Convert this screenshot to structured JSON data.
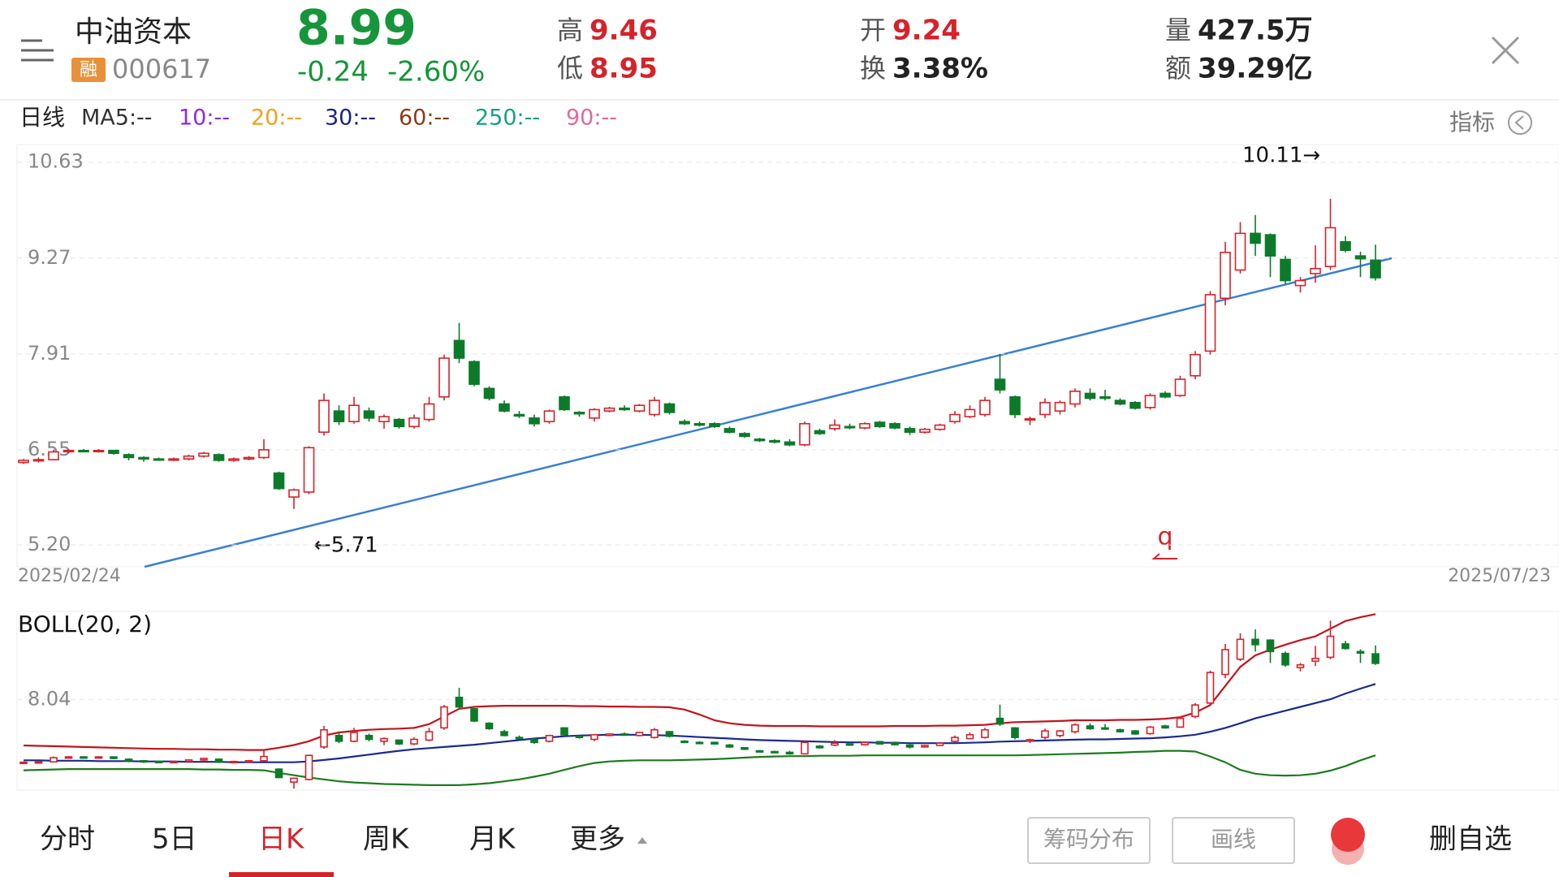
{
  "header": {
    "name": "中油资本",
    "badge": "融",
    "code": "000617",
    "price": "8.99",
    "change": "-0.24",
    "change_pct": "-2.60%",
    "price_color": "#16953a",
    "stats": [
      {
        "label": "高",
        "value": "9.46",
        "color": "#d4232b"
      },
      {
        "label": "低",
        "value": "8.95",
        "color": "#d4232b"
      },
      {
        "label": "开",
        "value": "9.24",
        "color": "#d4232b"
      },
      {
        "label": "换",
        "value": "3.38%",
        "color": "#222222"
      },
      {
        "label": "量",
        "value": "427.5万",
        "color": "#222222"
      },
      {
        "label": "额",
        "value": "39.29亿",
        "color": "#222222"
      }
    ]
  },
  "ma_bar": {
    "period": "日线",
    "items": [
      {
        "text": "MA5:--",
        "color": "#333333"
      },
      {
        "text": "10:--",
        "color": "#8a2be2"
      },
      {
        "text": "20:--",
        "color": "#f0a020"
      },
      {
        "text": "30:--",
        "color": "#1a237e"
      },
      {
        "text": "60:--",
        "color": "#8b3a1a"
      },
      {
        "text": "250:--",
        "color": "#17a085"
      },
      {
        "text": "90:--",
        "color": "#e06a9a"
      }
    ],
    "indicator": "指标"
  },
  "chart_data": [
    {
      "type": "candlestick",
      "ylim": [
        4.89,
        10.88
      ],
      "yticks": [
        10.63,
        9.27,
        7.91,
        6.55,
        {
          "value": 5.2,
          "label": "5.20"
        }
      ],
      "grid": true,
      "x_labels": [
        "2025/02/24",
        "2025/07/23"
      ],
      "up_color": "#d4232b",
      "down_color": "#0d7a2a",
      "annotations": [
        {
          "text": "10.11→"
        },
        {
          "text": "←5.71"
        }
      ],
      "marker": "q",
      "candles": [
        [
          6.37,
          6.42,
          6.35,
          6.4
        ],
        [
          6.4,
          6.44,
          6.37,
          6.41
        ],
        [
          6.41,
          6.55,
          6.4,
          6.52
        ],
        [
          6.53,
          6.56,
          6.5,
          6.54
        ],
        [
          6.54,
          6.56,
          6.52,
          6.53
        ],
        [
          6.53,
          6.56,
          6.51,
          6.54
        ],
        [
          6.54,
          6.55,
          6.48,
          6.5
        ],
        [
          6.48,
          6.5,
          6.4,
          6.44
        ],
        [
          6.44,
          6.46,
          6.38,
          6.42
        ],
        [
          6.42,
          6.44,
          6.4,
          6.41
        ],
        [
          6.41,
          6.44,
          6.39,
          6.42
        ],
        [
          6.42,
          6.48,
          6.4,
          6.46
        ],
        [
          6.46,
          6.52,
          6.44,
          6.5
        ],
        [
          6.48,
          6.5,
          6.38,
          6.4
        ],
        [
          6.4,
          6.44,
          6.38,
          6.42
        ],
        [
          6.42,
          6.46,
          6.4,
          6.44
        ],
        [
          6.44,
          6.7,
          6.42,
          6.55
        ],
        [
          6.22,
          6.24,
          5.98,
          6.0
        ],
        [
          5.88,
          6.0,
          5.71,
          5.98
        ],
        [
          5.95,
          6.6,
          5.92,
          6.58
        ],
        [
          6.8,
          7.35,
          6.75,
          7.25
        ],
        [
          7.1,
          7.18,
          6.9,
          6.95
        ],
        [
          6.95,
          7.3,
          6.92,
          7.18
        ],
        [
          7.1,
          7.15,
          6.95,
          7.0
        ],
        [
          6.95,
          7.05,
          6.85,
          7.02
        ],
        [
          6.98,
          7.0,
          6.85,
          6.88
        ],
        [
          6.88,
          7.05,
          6.85,
          7.0
        ],
        [
          6.98,
          7.3,
          6.95,
          7.2
        ],
        [
          7.3,
          7.9,
          7.25,
          7.85
        ],
        [
          8.1,
          8.35,
          7.78,
          7.85
        ],
        [
          7.8,
          7.82,
          7.45,
          7.48
        ],
        [
          7.42,
          7.45,
          7.25,
          7.28
        ],
        [
          7.2,
          7.25,
          7.08,
          7.1
        ],
        [
          7.05,
          7.1,
          7.0,
          7.03
        ],
        [
          7.0,
          7.05,
          6.88,
          6.92
        ],
        [
          6.95,
          7.12,
          6.92,
          7.1
        ],
        [
          7.3,
          7.32,
          7.1,
          7.12
        ],
        [
          7.08,
          7.1,
          7.02,
          7.06
        ],
        [
          7.0,
          7.14,
          6.95,
          7.12
        ],
        [
          7.1,
          7.16,
          7.08,
          7.14
        ],
        [
          7.14,
          7.18,
          7.1,
          7.12
        ],
        [
          7.1,
          7.2,
          7.08,
          7.18
        ],
        [
          7.05,
          7.3,
          7.02,
          7.25
        ],
        [
          7.2,
          7.22,
          7.05,
          7.08
        ],
        [
          6.95,
          6.98,
          6.9,
          6.92
        ],
        [
          6.92,
          6.95,
          6.88,
          6.9
        ],
        [
          6.92,
          6.94,
          6.86,
          6.88
        ],
        [
          6.85,
          6.88,
          6.78,
          6.8
        ],
        [
          6.78,
          6.8,
          6.72,
          6.74
        ],
        [
          6.7,
          6.72,
          6.66,
          6.68
        ],
        [
          6.68,
          6.7,
          6.64,
          6.66
        ],
        [
          6.66,
          6.7,
          6.6,
          6.62
        ],
        [
          6.62,
          6.95,
          6.6,
          6.92
        ],
        [
          6.82,
          6.85,
          6.76,
          6.78
        ],
        [
          6.85,
          6.98,
          6.82,
          6.9
        ],
        [
          6.88,
          6.92,
          6.84,
          6.87
        ],
        [
          6.86,
          6.94,
          6.84,
          6.92
        ],
        [
          6.94,
          6.96,
          6.86,
          6.88
        ],
        [
          6.92,
          6.94,
          6.84,
          6.86
        ],
        [
          6.85,
          6.88,
          6.76,
          6.8
        ],
        [
          6.8,
          6.86,
          6.78,
          6.84
        ],
        [
          6.84,
          6.92,
          6.82,
          6.9
        ],
        [
          6.95,
          7.1,
          6.92,
          7.05
        ],
        [
          7.02,
          7.18,
          7.0,
          7.12
        ],
        [
          7.05,
          7.3,
          7.02,
          7.25
        ],
        [
          7.55,
          7.91,
          7.35,
          7.4
        ],
        [
          7.3,
          7.32,
          7.0,
          7.05
        ],
        [
          6.98,
          7.02,
          6.9,
          6.99
        ],
        [
          7.05,
          7.28,
          7.0,
          7.22
        ],
        [
          7.1,
          7.25,
          7.05,
          7.22
        ],
        [
          7.2,
          7.42,
          7.15,
          7.38
        ],
        [
          7.35,
          7.42,
          7.25,
          7.28
        ],
        [
          7.3,
          7.4,
          7.25,
          7.28
        ],
        [
          7.25,
          7.28,
          7.18,
          7.2
        ],
        [
          7.22,
          7.24,
          7.12,
          7.14
        ],
        [
          7.15,
          7.35,
          7.12,
          7.32
        ],
        [
          7.35,
          7.38,
          7.28,
          7.3
        ],
        [
          7.32,
          7.6,
          7.3,
          7.55
        ],
        [
          7.6,
          7.95,
          7.55,
          7.9
        ],
        [
          7.95,
          8.8,
          7.9,
          8.75
        ],
        [
          8.7,
          9.5,
          8.6,
          9.35
        ],
        [
          9.1,
          9.78,
          9.05,
          9.62
        ],
        [
          9.62,
          9.88,
          9.3,
          9.48
        ],
        [
          9.6,
          9.62,
          9.0,
          9.3
        ],
        [
          9.25,
          9.3,
          8.9,
          8.95
        ],
        [
          8.88,
          9.0,
          8.78,
          8.95
        ],
        [
          9.05,
          9.45,
          8.92,
          9.12
        ],
        [
          9.15,
          10.11,
          9.1,
          9.7
        ],
        [
          9.5,
          9.58,
          9.35,
          9.38
        ],
        [
          9.3,
          9.36,
          9.0,
          9.26
        ],
        [
          9.24,
          9.46,
          8.95,
          8.99
        ]
      ]
    },
    {
      "type": "boll",
      "title": "BOLL(20, 2)",
      "ylim": [
        5.67,
        10.35
      ],
      "yticks": [
        8.04
      ],
      "grid": true,
      "series": [
        {
          "color": "#c0141e",
          "values": [
            6.84,
            6.83,
            6.82,
            6.81,
            6.8,
            6.79,
            6.78,
            6.77,
            6.76,
            6.75,
            6.75,
            6.74,
            6.74,
            6.73,
            6.73,
            6.72,
            6.72,
            6.78,
            6.85,
            6.95,
            7.1,
            7.18,
            7.22,
            7.25,
            7.27,
            7.28,
            7.3,
            7.4,
            7.6,
            7.8,
            7.85,
            7.87,
            7.88,
            7.88,
            7.88,
            7.88,
            7.88,
            7.87,
            7.87,
            7.86,
            7.86,
            7.85,
            7.85,
            7.84,
            7.78,
            7.65,
            7.5,
            7.42,
            7.38,
            7.36,
            7.35,
            7.35,
            7.35,
            7.34,
            7.34,
            7.34,
            7.34,
            7.34,
            7.35,
            7.35,
            7.35,
            7.36,
            7.36,
            7.37,
            7.38,
            7.42,
            7.45,
            7.46,
            7.47,
            7.48,
            7.5,
            7.5,
            7.5,
            7.51,
            7.51,
            7.52,
            7.54,
            7.58,
            7.7,
            7.9,
            8.4,
            8.9,
            9.2,
            9.35,
            9.48,
            9.6,
            9.7,
            9.9,
            10.1,
            10.2,
            10.28
          ]
        },
        {
          "color": "#1a2a8a",
          "values": [
            6.45,
            6.45,
            6.44,
            6.44,
            6.44,
            6.43,
            6.43,
            6.43,
            6.42,
            6.42,
            6.42,
            6.41,
            6.41,
            6.41,
            6.4,
            6.4,
            6.4,
            6.4,
            6.4,
            6.42,
            6.46,
            6.5,
            6.55,
            6.6,
            6.65,
            6.7,
            6.74,
            6.77,
            6.8,
            6.83,
            6.86,
            6.9,
            6.94,
            6.98,
            7.02,
            7.05,
            7.08,
            7.1,
            7.11,
            7.12,
            7.12,
            7.12,
            7.11,
            7.1,
            7.08,
            7.06,
            7.04,
            7.02,
            7.0,
            6.98,
            6.97,
            6.96,
            6.95,
            6.94,
            6.93,
            6.92,
            6.92,
            6.91,
            6.91,
            6.9,
            6.9,
            6.9,
            6.9,
            6.91,
            6.92,
            6.94,
            6.95,
            6.96,
            6.97,
            6.98,
            6.99,
            7.0,
            7.0,
            7.01,
            7.02,
            7.03,
            7.05,
            7.08,
            7.12,
            7.2,
            7.3,
            7.42,
            7.55,
            7.65,
            7.75,
            7.85,
            7.95,
            8.05,
            8.2,
            8.33,
            8.45
          ]
        },
        {
          "color": "#1e7a1e",
          "values": [
            6.19,
            6.2,
            6.21,
            6.22,
            6.22,
            6.22,
            6.22,
            6.22,
            6.22,
            6.22,
            6.22,
            6.22,
            6.21,
            6.21,
            6.2,
            6.2,
            6.19,
            6.12,
            6.06,
            6.0,
            5.95,
            5.9,
            5.87,
            5.85,
            5.83,
            5.82,
            5.81,
            5.8,
            5.8,
            5.8,
            5.82,
            5.85,
            5.9,
            5.95,
            6.02,
            6.1,
            6.2,
            6.3,
            6.38,
            6.42,
            6.44,
            6.45,
            6.45,
            6.45,
            6.46,
            6.47,
            6.48,
            6.5,
            6.52,
            6.54,
            6.55,
            6.56,
            6.56,
            6.57,
            6.57,
            6.57,
            6.58,
            6.58,
            6.58,
            6.58,
            6.58,
            6.58,
            6.58,
            6.58,
            6.58,
            6.58,
            6.58,
            6.59,
            6.6,
            6.61,
            6.62,
            6.63,
            6.64,
            6.65,
            6.67,
            6.68,
            6.7,
            6.7,
            6.68,
            6.55,
            6.4,
            6.2,
            6.1,
            6.06,
            6.05,
            6.06,
            6.1,
            6.18,
            6.3,
            6.45,
            6.58
          ]
        }
      ]
    }
  ],
  "bottom_bar": {
    "tabs": [
      "分时",
      "5日",
      "日K",
      "周K",
      "月K",
      "更多"
    ],
    "active_tab": 2,
    "buttons": [
      "筹码分布",
      "画线"
    ],
    "remove": "删自选"
  }
}
